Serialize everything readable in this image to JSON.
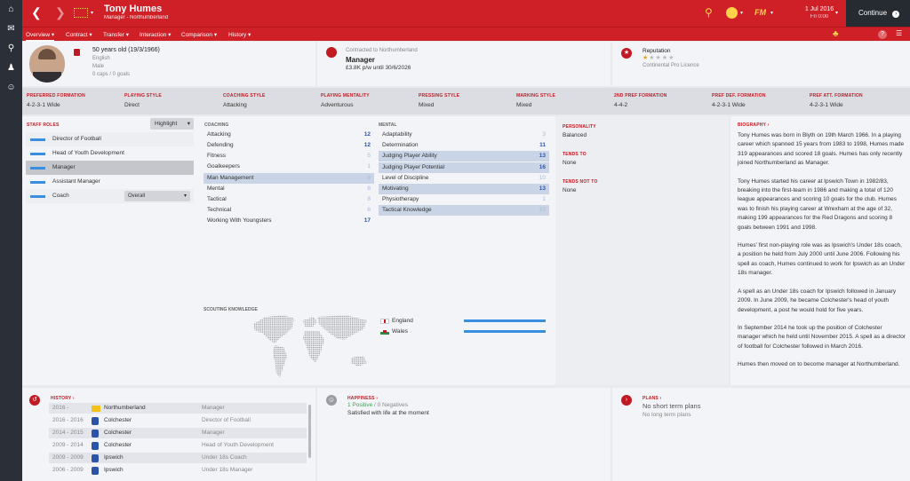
{
  "colors": {
    "accent": "#cf1f27",
    "sidebar": "#2b2f37",
    "bar": "#3a8ee0"
  },
  "sidebar": {
    "icons": [
      "home-icon",
      "inbox-icon",
      "search-icon",
      "squad-icon",
      "staff-icon"
    ]
  },
  "header": {
    "name": "Tony Humes",
    "subtitle": "Manager - Northumberland",
    "date": "1 Jul 2016",
    "day_time": "Fri 0:00",
    "continue_label": "Continue"
  },
  "tabs": [
    "Overview",
    "Contract",
    "Transfer",
    "Interaction",
    "Comparison",
    "History"
  ],
  "profile": {
    "age": "50 years old (19/3/1966)",
    "nationality": "English",
    "gender": "Male",
    "caps": "0 caps / 0 goals"
  },
  "contract": {
    "label": "Contracted to Northumberland",
    "role": "Manager",
    "wage": "£3.8K p/w until 30/6/2026"
  },
  "reputation": {
    "label": "Reputation",
    "stars": 1,
    "level": "Continental Pro Licence"
  },
  "tactics": [
    {
      "label": "PREFERRED FORMATION",
      "value": "4-2-3-1 Wide"
    },
    {
      "label": "PLAYING STYLE",
      "value": "Direct"
    },
    {
      "label": "COACHING STYLE",
      "value": "Attacking"
    },
    {
      "label": "PLAYING MENTALITY",
      "value": "Adventurous"
    },
    {
      "label": "PRESSING STYLE",
      "value": "Mixed"
    },
    {
      "label": "MARKING STYLE",
      "value": "Mixed"
    },
    {
      "label": "2ND PREF FORMATION",
      "value": "4-4-2"
    },
    {
      "label": "PREF DEF. FORMATION",
      "value": "4-2-3-1 Wide"
    },
    {
      "label": "PREF ATT. FORMATION",
      "value": "4-2-3-1 Wide"
    }
  ],
  "staff_roles": {
    "title": "STAFF ROLES",
    "highlight_label": "Highlight",
    "coach_select": "Overall",
    "items": [
      {
        "label": "Director of Football",
        "fill": 0.85,
        "selected": false
      },
      {
        "label": "Head of Youth Development",
        "fill": 0.85,
        "selected": false
      },
      {
        "label": "Manager",
        "fill": 0.85,
        "selected": true
      },
      {
        "label": "Assistant Manager",
        "fill": 0.85,
        "selected": false
      },
      {
        "label": "Coach",
        "fill": 0.85,
        "selected": false
      }
    ]
  },
  "coaching": {
    "title": "COACHING",
    "items": [
      {
        "label": "Attacking",
        "value": "12",
        "hl": false,
        "dim": false
      },
      {
        "label": "Defending",
        "value": "12",
        "hl": false,
        "dim": false
      },
      {
        "label": "Fitness",
        "value": "5",
        "hl": false,
        "dim": true
      },
      {
        "label": "Goalkeepers",
        "value": "1",
        "hl": false,
        "dim": true
      },
      {
        "label": "Man Management",
        "value": "8",
        "hl": true,
        "dim": true
      },
      {
        "label": "Mental",
        "value": "8",
        "hl": false,
        "dim": true
      },
      {
        "label": "Tactical",
        "value": "8",
        "hl": false,
        "dim": true
      },
      {
        "label": "Technical",
        "value": "6",
        "hl": false,
        "dim": true
      },
      {
        "label": "Working With Youngsters",
        "value": "17",
        "hl": false,
        "dim": false
      }
    ]
  },
  "mental": {
    "title": "MENTAL",
    "items": [
      {
        "label": "Adaptability",
        "value": "3",
        "hl": false,
        "dim": true
      },
      {
        "label": "Determination",
        "value": "11",
        "hl": false,
        "dim": false
      },
      {
        "label": "Judging Player Ability",
        "value": "13",
        "hl": true,
        "dim": false
      },
      {
        "label": "Judging Player Potential",
        "value": "16",
        "hl": true,
        "dim": false
      },
      {
        "label": "Level of Discipline",
        "value": "10",
        "hl": false,
        "dim": true
      },
      {
        "label": "Motivating",
        "value": "13",
        "hl": true,
        "dim": false
      },
      {
        "label": "Physiotherapy",
        "value": "1",
        "hl": false,
        "dim": true
      },
      {
        "label": "Tactical Knowledge",
        "value": "10",
        "hl": true,
        "dim": true
      }
    ]
  },
  "personality": {
    "title": "PERSONALITY",
    "value": "Balanced",
    "tends_to_title": "TENDS TO",
    "tends_to": "None",
    "tends_not_title": "TENDS NOT TO",
    "tends_not": "None"
  },
  "biography": {
    "title": "BIOGRAPHY",
    "paragraphs": [
      "Tony Humes was born in Blyth on 19th March 1966. In a playing career which spanned 15 years from 1983 to 1998, Humes made 319 appearances and scored 18 goals. Humes has only recently joined Northumberland as Manager.",
      "Tony Humes started his career at Ipswich Town in 1982/83, breaking into the first-team in 1986 and making a total of 120 league appearances and scoring 10 goals for the club. Humes was to finish his playing career at Wrexham at the age of 32, making 199 appearances for the Red Dragons and scoring 8 goals between 1991 and 1998.",
      "Humes' first non-playing role was as Ipswich's Under 18s coach, a position he held from July 2000 until June 2006. Following his spell as coach, Humes continued to work for Ipswich as an Under 18s manager.",
      "A spell as an Under 18s coach for Ipswich followed in January 2009. In June 2009, he became Colchester's head of youth development, a post he would hold for five years.",
      "In September 2014 he took up the position of Colchester manager which he held until November 2015. A spell as a director of football for Colchester followed in March 2016.",
      "Humes then moved on to become manager at Northumberland."
    ]
  },
  "scouting": {
    "title": "SCOUTING KNOWLEDGE",
    "items": [
      {
        "country": "England",
        "fill": 1.0
      },
      {
        "country": "Wales",
        "fill": 1.0
      }
    ]
  },
  "history": {
    "title": "HISTORY",
    "rows": [
      {
        "years": "2016 -",
        "club": "Northumberland",
        "role": "Manager"
      },
      {
        "years": "2016 - 2016",
        "club": "Colchester",
        "role": "Director of Football"
      },
      {
        "years": "2014 - 2015",
        "club": "Colchester",
        "role": "Manager"
      },
      {
        "years": "2009 - 2014",
        "club": "Colchester",
        "role": "Head of Youth Development"
      },
      {
        "years": "2009 - 2009",
        "club": "Ipswich",
        "role": "Under 18s Coach"
      },
      {
        "years": "2006 - 2009",
        "club": "Ipswich",
        "role": "Under 18s Manager"
      }
    ]
  },
  "happiness": {
    "title": "HAPPINESS",
    "positive": "1 Positive",
    "negative": "0 Negatives",
    "summary": "Satisfied with life at the moment"
  },
  "plans": {
    "title": "PLANS",
    "short": "No short term plans",
    "long": "No long term plans"
  }
}
